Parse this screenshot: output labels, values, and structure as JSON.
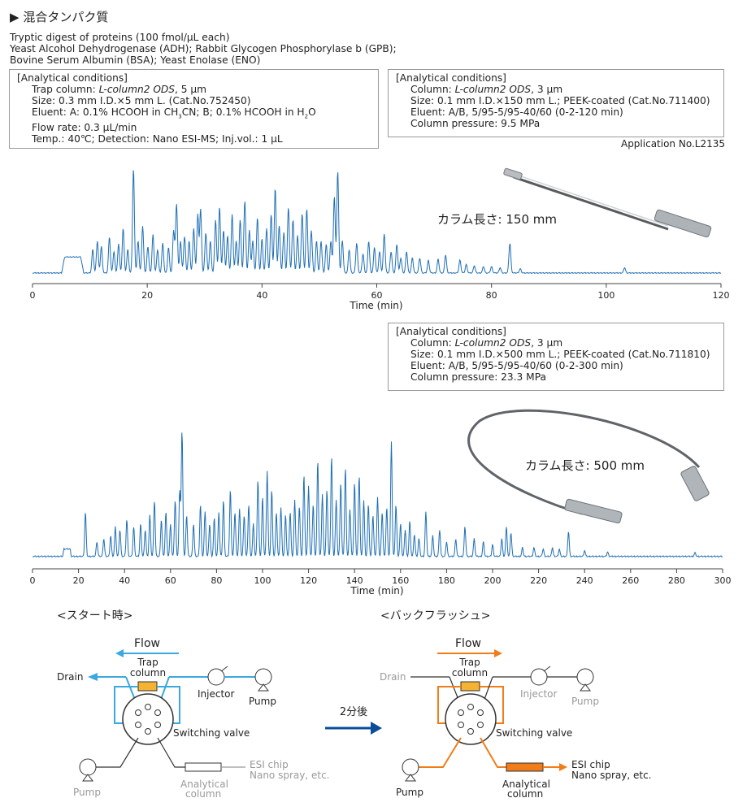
{
  "header": {
    "title": "混合タンパク質",
    "description": [
      "Tryptic digest of proteins (100 fmol/µL each)",
      "Yeast Alcohol Dehydrogenase (ADH); Rabbit Glycogen Phosphorylase b (GPB);",
      "Bovine Serum Albumin (BSA); Yeast Enolase (ENO)"
    ]
  },
  "common_conditions": {
    "heading": "[Analytical  conditions]",
    "trap_prefix": "Trap column: ",
    "trap_column": "L-column2 ODS",
    "trap_suffix": ", 5 µm",
    "size": "Size: 0.3 mm I.D.×5 mm L. (Cat.No.752450)",
    "eluent_pre": "Eluent: A: 0.1% HCOOH in CH",
    "eluent_sub1": "3",
    "eluent_mid": "CN; B; 0.1% HCOOH in H",
    "eluent_sub2": "2",
    "eluent_post": "O",
    "flow_rate": "Flow rate: 0.3 µL/min",
    "temp": "Temp.: 40℃; Detection: Nano ESI-MS; Inj.vol.: 1 µL"
  },
  "conditions_150": {
    "heading": "[Analytical  conditions]",
    "column_prefix": "Column: ",
    "column": "L-column2 ODS",
    "column_suffix": ", 3 µm",
    "size": "Size: 0.1 mm I.D.×150 mm L.; PEEK-coated (Cat.No.711400)",
    "eluent": "Eluent: A/B, 5/95-5/95-40/60 (0-2-120 min)",
    "pressure": "Column pressure: 9.5 MPa"
  },
  "conditions_500": {
    "heading": "[Analytical  conditions]",
    "column_prefix": "Column: ",
    "column": "L-column2 ODS",
    "column_suffix": ", 3 µm",
    "size": "Size: 0.1 mm I.D.×500 mm L.; PEEK-coated (Cat.No.711810)",
    "eluent": "Eluent: A/B, 5/95-5/95-40/60 (0-2-300 min)",
    "pressure": "Column pressure: 23.3 MPa"
  },
  "application_no": "Application No.L2135",
  "chart_data": [
    {
      "type": "line",
      "name": "150mm",
      "xlabel": "Time (min)",
      "ylabel": "",
      "xlim": [
        0,
        120
      ],
      "xticks": [
        0,
        20,
        40,
        60,
        80,
        100,
        120
      ],
      "annotation": "カラム長さ: 150 mm",
      "color": "#1f6fb5",
      "baseline": 0.02,
      "hump": [
        5,
        9,
        0.17
      ],
      "peaks": [
        [
          10.5,
          0.22
        ],
        [
          11.3,
          0.3
        ],
        [
          12,
          0.25
        ],
        [
          13.4,
          0.34
        ],
        [
          14.2,
          0.2
        ],
        [
          15,
          0.27
        ],
        [
          15.8,
          0.42
        ],
        [
          16.6,
          0.22
        ],
        [
          17.6,
          0.98
        ],
        [
          18.4,
          0.3
        ],
        [
          19.2,
          0.44
        ],
        [
          20.1,
          0.25
        ],
        [
          21,
          0.36
        ],
        [
          21.8,
          0.22
        ],
        [
          22.7,
          0.28
        ],
        [
          23.7,
          0.24
        ],
        [
          24.6,
          0.4
        ],
        [
          25.1,
          0.65
        ],
        [
          25.8,
          0.3
        ],
        [
          26.5,
          0.34
        ],
        [
          27.3,
          0.3
        ],
        [
          28.1,
          0.42
        ],
        [
          28.8,
          0.55
        ],
        [
          29.3,
          0.6
        ],
        [
          30.2,
          0.38
        ],
        [
          31,
          0.3
        ],
        [
          31.9,
          0.5
        ],
        [
          32.6,
          0.62
        ],
        [
          33.3,
          0.4
        ],
        [
          34,
          0.35
        ],
        [
          34.8,
          0.55
        ],
        [
          35.5,
          0.3
        ],
        [
          36.2,
          0.5
        ],
        [
          37,
          0.68
        ],
        [
          37.8,
          0.4
        ],
        [
          38.4,
          0.3
        ],
        [
          39.2,
          0.52
        ],
        [
          40,
          0.32
        ],
        [
          40.8,
          0.42
        ],
        [
          41.6,
          0.55
        ],
        [
          42.3,
          0.8
        ],
        [
          43,
          0.45
        ],
        [
          43.8,
          0.38
        ],
        [
          44.6,
          0.62
        ],
        [
          45.4,
          0.5
        ],
        [
          46.2,
          0.35
        ],
        [
          47,
          0.56
        ],
        [
          47.8,
          0.6
        ],
        [
          48.6,
          0.4
        ],
        [
          49.5,
          0.3
        ],
        [
          50.3,
          0.3
        ],
        [
          51.2,
          0.27
        ],
        [
          52,
          0.3
        ],
        [
          52.6,
          0.72
        ],
        [
          53.2,
          0.96
        ],
        [
          54,
          0.3
        ],
        [
          55.2,
          0.22
        ],
        [
          56.5,
          0.28
        ],
        [
          57.6,
          0.18
        ],
        [
          58.6,
          0.3
        ],
        [
          59.6,
          0.24
        ],
        [
          60.5,
          0.2
        ],
        [
          61.3,
          0.37
        ],
        [
          62.5,
          0.2
        ],
        [
          63.5,
          0.27
        ],
        [
          64.2,
          0.14
        ],
        [
          65.2,
          0.2
        ],
        [
          66.2,
          0.14
        ],
        [
          67.5,
          0.14
        ],
        [
          69,
          0.12
        ],
        [
          70.7,
          0.13
        ],
        [
          72,
          0.17
        ],
        [
          74.5,
          0.12
        ],
        [
          75.6,
          0.08
        ],
        [
          77,
          0.07
        ],
        [
          78.6,
          0.06
        ],
        [
          80,
          0.06
        ],
        [
          81.5,
          0.05
        ],
        [
          83.2,
          0.28
        ],
        [
          85,
          0.04
        ],
        [
          103.2,
          0.05
        ]
      ]
    },
    {
      "type": "line",
      "name": "500mm",
      "xlabel": "Time (min)",
      "ylabel": "",
      "xlim": [
        0,
        300
      ],
      "xticks": [
        0,
        20,
        40,
        60,
        80,
        100,
        120,
        140,
        160,
        180,
        200,
        220,
        240,
        260,
        280,
        300
      ],
      "annotation": "カラム長さ: 500 mm",
      "color": "#1f6fb5",
      "baseline": 0.02,
      "hump": [
        13,
        17,
        0.07
      ],
      "peaks": [
        [
          23,
          0.3
        ],
        [
          28,
          0.1
        ],
        [
          31,
          0.12
        ],
        [
          34,
          0.14
        ],
        [
          36,
          0.2
        ],
        [
          38,
          0.18
        ],
        [
          41,
          0.25
        ],
        [
          44,
          0.2
        ],
        [
          47,
          0.22
        ],
        [
          49,
          0.18
        ],
        [
          51,
          0.28
        ],
        [
          53,
          0.38
        ],
        [
          56,
          0.25
        ],
        [
          58,
          0.3
        ],
        [
          60,
          0.22
        ],
        [
          62,
          0.38
        ],
        [
          64,
          0.45
        ],
        [
          65,
          0.85
        ],
        [
          67,
          0.28
        ],
        [
          70,
          0.22
        ],
        [
          73,
          0.35
        ],
        [
          75,
          0.3
        ],
        [
          77,
          0.22
        ],
        [
          79,
          0.26
        ],
        [
          81,
          0.3
        ],
        [
          83,
          0.38
        ],
        [
          86,
          0.45
        ],
        [
          88,
          0.3
        ],
        [
          90,
          0.32
        ],
        [
          92,
          0.28
        ],
        [
          94,
          0.35
        ],
        [
          96,
          0.22
        ],
        [
          98,
          0.52
        ],
        [
          100,
          0.4
        ],
        [
          102,
          0.58
        ],
        [
          104,
          0.45
        ],
        [
          106,
          0.3
        ],
        [
          108,
          0.33
        ],
        [
          110,
          0.28
        ],
        [
          112,
          0.3
        ],
        [
          114,
          0.38
        ],
        [
          116,
          0.34
        ],
        [
          118,
          0.55
        ],
        [
          120,
          0.48
        ],
        [
          122,
          0.35
        ],
        [
          124,
          0.65
        ],
        [
          126,
          0.42
        ],
        [
          128,
          0.45
        ],
        [
          130,
          0.68
        ],
        [
          132,
          0.38
        ],
        [
          134,
          0.5
        ],
        [
          136,
          0.6
        ],
        [
          138,
          0.32
        ],
        [
          140,
          0.5
        ],
        [
          142,
          0.55
        ],
        [
          144,
          0.38
        ],
        [
          146,
          0.35
        ],
        [
          148,
          0.28
        ],
        [
          150,
          0.4
        ],
        [
          152,
          0.3
        ],
        [
          154,
          0.33
        ],
        [
          156,
          0.78
        ],
        [
          158,
          0.35
        ],
        [
          160,
          0.22
        ],
        [
          162,
          0.18
        ],
        [
          164,
          0.24
        ],
        [
          166,
          0.15
        ],
        [
          168,
          0.12
        ],
        [
          171,
          0.3
        ],
        [
          174,
          0.14
        ],
        [
          177,
          0.18
        ],
        [
          180,
          0.1
        ],
        [
          184,
          0.12
        ],
        [
          188,
          0.2
        ],
        [
          192,
          0.12
        ],
        [
          196,
          0.1
        ],
        [
          200,
          0.08
        ],
        [
          204,
          0.12
        ],
        [
          206,
          0.2
        ],
        [
          208,
          0.16
        ],
        [
          213,
          0.06
        ],
        [
          218,
          0.06
        ],
        [
          222,
          0.05
        ],
        [
          226,
          0.06
        ],
        [
          229,
          0.05
        ],
        [
          233,
          0.17
        ],
        [
          240,
          0.04
        ],
        [
          250,
          0.03
        ],
        [
          288,
          0.025
        ]
      ]
    }
  ],
  "diagram": {
    "start_title": "<スタート時>",
    "backflush_title": "<バックフラッシュ>",
    "flow_label": "Flow",
    "drain": "Drain",
    "trap": "Trap",
    "column": "column",
    "injector": "Injector",
    "pump": "Pump",
    "switching_valve": "Switching valve",
    "analytical": "Analytical",
    "esi": "ESI chip",
    "nano": "Nano spray, etc.",
    "after": "2分後",
    "colors": {
      "blue": "#3aa9e0",
      "orange": "#f07d1a",
      "trap_fill": "#f5b233",
      "arrow": "#0b4d99",
      "gray": "#999999"
    }
  }
}
